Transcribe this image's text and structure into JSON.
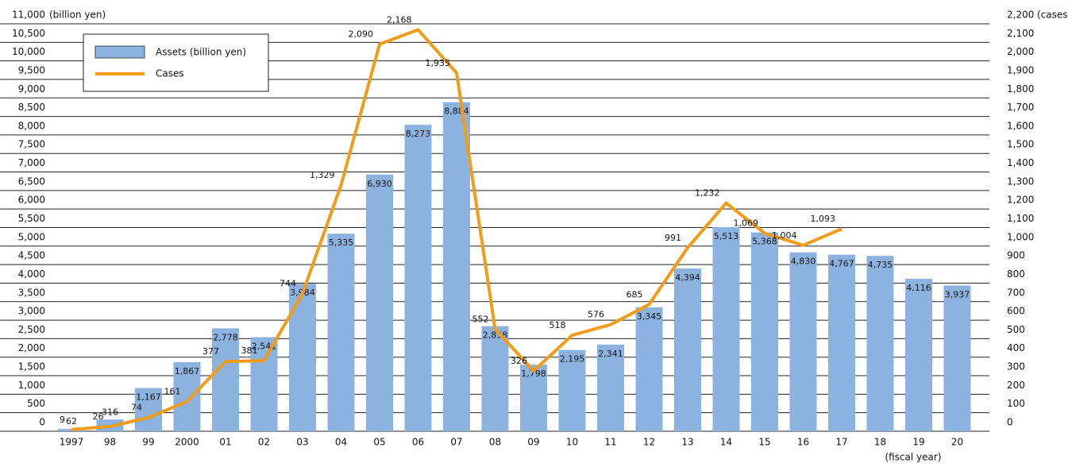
{
  "chart_data": {
    "type": "bar-line",
    "y_label": "(billion yen)",
    "y2_label": "(cases)",
    "x_label": "(fiscal year)",
    "categories": [
      "1997",
      "98",
      "99",
      "2000",
      "01",
      "02",
      "03",
      "04",
      "05",
      "06",
      "07",
      "08",
      "09",
      "10",
      "11",
      "12",
      "13",
      "14",
      "15",
      "16",
      "17",
      "18",
      "19",
      "20"
    ],
    "series": [
      {
        "name": "Assets (billion yen)",
        "type": "bar",
        "color": "#8cb3e0",
        "values": [
          62,
          316,
          1167,
          1867,
          2778,
          2541,
          3984,
          5335,
          6930,
          8273,
          8884,
          2838,
          1798,
          2195,
          2341,
          3345,
          4394,
          5513,
          5368,
          4830,
          4767,
          4735,
          4116,
          3937
        ],
        "value_labels": [
          "62",
          "316",
          "1,167",
          "1,867",
          "2,778",
          "2,541",
          "3,984",
          "5,335",
          "6,930",
          "8,273",
          "8,884",
          "2,838",
          "1,798",
          "2,195",
          "2,341",
          "3,345",
          "4,394",
          "5,513",
          "5,368",
          "4,830",
          "4,767",
          "4,735",
          "4,116",
          "3,937"
        ]
      },
      {
        "name": "Cases",
        "type": "line",
        "axis": "y2",
        "color": "#f39c1a",
        "values": [
          9,
          26,
          74,
          161,
          377,
          381,
          744,
          1329,
          2090,
          2168,
          1935,
          552,
          326,
          518,
          576,
          685,
          991,
          1232,
          1069,
          1004,
          1093,
          null,
          null,
          null
        ],
        "value_labels": [
          "9",
          "26",
          "74",
          "161",
          "377",
          "381",
          "744",
          "1,329",
          "2,090",
          "2,168",
          "1,935",
          "552",
          "326",
          "518",
          "576",
          "685",
          "991",
          "1,232",
          "1,069",
          "1,004",
          "1,093",
          null,
          null,
          null
        ]
      }
    ],
    "ylim": [
      0,
      11000
    ],
    "yticks": [
      0,
      500,
      {
        "value": 1000,
        "label": "1,000"
      },
      {
        "value": 1500,
        "label": "1,500"
      },
      {
        "value": 2000,
        "label": "2,000"
      },
      {
        "value": 2500,
        "label": "2,500"
      },
      {
        "value": 3000,
        "label": "3,000"
      },
      {
        "value": 3500,
        "label": "3,500"
      },
      {
        "value": 4000,
        "label": "4,000"
      },
      {
        "value": 4500,
        "label": "4,500"
      },
      {
        "value": 5000,
        "label": "5,000"
      },
      {
        "value": 5500,
        "label": "5,500"
      },
      {
        "value": 6000,
        "label": "6,000"
      },
      {
        "value": 6500,
        "label": "6,500"
      },
      {
        "value": 7000,
        "label": "7,000"
      },
      {
        "value": 7500,
        "label": "7,500"
      },
      {
        "value": 8000,
        "label": "8,000"
      },
      {
        "value": 8500,
        "label": "8,500"
      },
      {
        "value": 9000,
        "label": "9,000"
      },
      {
        "value": 9500,
        "label": "9,500"
      },
      {
        "value": 10000,
        "label": "10,000"
      },
      {
        "value": 10500,
        "label": "10,500"
      },
      {
        "value": 11000,
        "label": "11,000"
      }
    ],
    "y2lim": [
      0,
      2200
    ],
    "y2ticks": [
      0,
      100,
      200,
      300,
      400,
      500,
      600,
      700,
      800,
      900,
      {
        "value": 1000,
        "label": "1,000"
      },
      {
        "value": 1100,
        "label": "1,100"
      },
      {
        "value": 1200,
        "label": "1,200"
      },
      {
        "value": 1300,
        "label": "1,300"
      },
      {
        "value": 1400,
        "label": "1,400"
      },
      {
        "value": 1500,
        "label": "1,500"
      },
      {
        "value": 1600,
        "label": "1,600"
      },
      {
        "value": 1700,
        "label": "1,700"
      },
      {
        "value": 1800,
        "label": "1,800"
      },
      {
        "value": 1900,
        "label": "1,900"
      },
      {
        "value": 2000,
        "label": "2,000"
      },
      {
        "value": 2100,
        "label": "2,100"
      },
      {
        "value": 2200,
        "label": "2,200"
      }
    ],
    "grid": true
  }
}
